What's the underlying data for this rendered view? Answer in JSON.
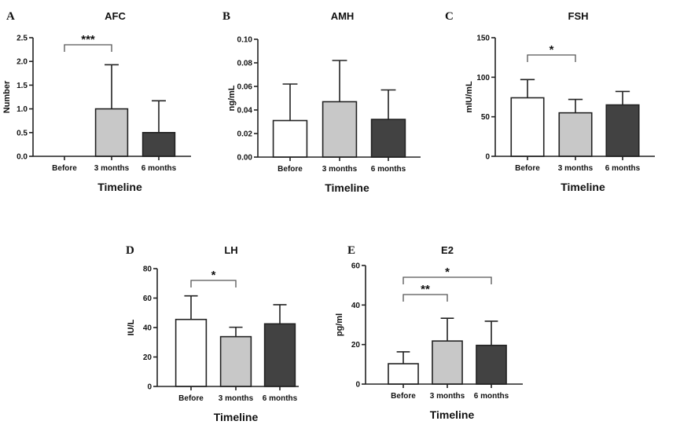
{
  "chart_data": [
    {
      "panel": "A",
      "type": "bar",
      "title": "AFC",
      "xlabel": "Timeline",
      "ylabel": "Number",
      "categories": [
        "Before",
        "3 months",
        "6 months"
      ],
      "values": [
        0,
        1.0,
        0.5
      ],
      "error_upper": [
        0,
        1.93,
        1.17
      ],
      "ylim": [
        0,
        2.5
      ],
      "yticks": [
        "0.0",
        "0.5",
        "1.0",
        "1.5",
        "2.0",
        "2.5"
      ],
      "significance": [
        {
          "from": 0,
          "to": 1,
          "label": "***"
        }
      ]
    },
    {
      "panel": "B",
      "type": "bar",
      "title": "AMH",
      "xlabel": "Timeline",
      "ylabel": "ng/mL",
      "categories": [
        "Before",
        "3 months",
        "6 months"
      ],
      "values": [
        0.031,
        0.047,
        0.032
      ],
      "error_upper": [
        0.062,
        0.082,
        0.057
      ],
      "ylim": [
        0,
        0.1
      ],
      "yticks": [
        "0.00",
        "0.02",
        "0.04",
        "0.06",
        "0.08",
        "0.10"
      ],
      "significance": []
    },
    {
      "panel": "C",
      "type": "bar",
      "title": "FSH",
      "xlabel": "Timeline",
      "ylabel": "mIU/mL",
      "categories": [
        "Before",
        "3 months",
        "6 months"
      ],
      "values": [
        74,
        55,
        65
      ],
      "error_upper": [
        97,
        72,
        82
      ],
      "ylim": [
        0,
        150
      ],
      "yticks": [
        "0",
        "50",
        "100",
        "150"
      ],
      "significance": [
        {
          "from": 0,
          "to": 1,
          "label": "*"
        }
      ]
    },
    {
      "panel": "D",
      "type": "bar",
      "title": "LH",
      "xlabel": "Timeline",
      "ylabel": "IU/L",
      "categories": [
        "Before",
        "3 months",
        "6 months"
      ],
      "values": [
        45.5,
        33.8,
        42.5
      ],
      "error_upper": [
        61.5,
        40.2,
        55.5
      ],
      "ylim": [
        0,
        80
      ],
      "yticks": [
        "0",
        "20",
        "40",
        "60",
        "80"
      ],
      "significance": [
        {
          "from": 0,
          "to": 1,
          "label": "*"
        }
      ]
    },
    {
      "panel": "E",
      "type": "bar",
      "title": "E2",
      "xlabel": "Timeline",
      "ylabel": "pg/ml",
      "categories": [
        "Before",
        "3 months",
        "6 months"
      ],
      "values": [
        10.3,
        21.8,
        19.6
      ],
      "error_upper": [
        16.3,
        33.3,
        31.8
      ],
      "ylim": [
        0,
        60
      ],
      "yticks": [
        "0",
        "20",
        "40",
        "60"
      ],
      "significance": [
        {
          "from": 0,
          "to": 1,
          "label": "**"
        },
        {
          "from": 0,
          "to": 2,
          "label": "*"
        }
      ]
    }
  ],
  "bar_colors": [
    "#ffffff",
    "#c8c8c8",
    "#424242"
  ]
}
